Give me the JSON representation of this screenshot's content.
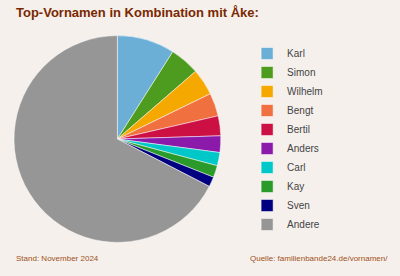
{
  "chart_data": {
    "type": "pie",
    "title": "Top-Vornamen in Kombination mit Åke:",
    "categories": [
      "Karl",
      "Simon",
      "Wilhelm",
      "Bengt",
      "Bertil",
      "Anders",
      "Carl",
      "Kay",
      "Sven",
      "Andere"
    ],
    "values": [
      8.7,
      4.5,
      4.0,
      3.5,
      3.0,
      2.5,
      2.0,
      1.8,
      1.5,
      65.2
    ],
    "colors": [
      "#6baed6",
      "#4d9c20",
      "#f5a800",
      "#f07040",
      "#cc1044",
      "#8b1aaa",
      "#00c8c8",
      "#2a9a2a",
      "#000080",
      "#969696"
    ],
    "legend": "right",
    "annotations": [
      "Stand: November 2024",
      "Quelle: familienbande24.de/vornamen/"
    ]
  }
}
